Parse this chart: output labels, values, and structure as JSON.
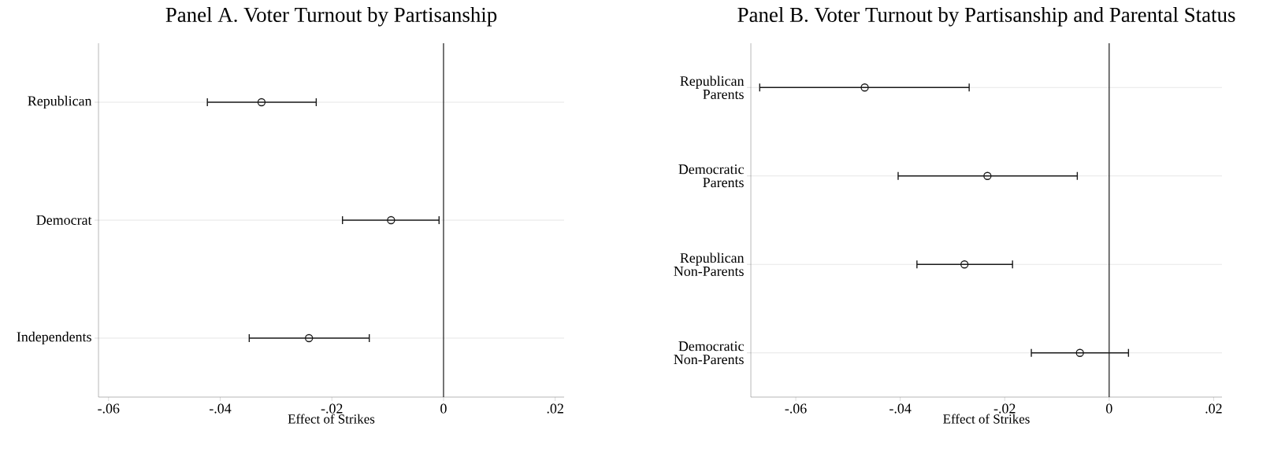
{
  "chart_data": [
    {
      "type": "scatter",
      "title": "Panel A. Voter Turnout by Partisanship",
      "xlabel": "Effect of Strikes",
      "orientation": "horizontal",
      "categories": [
        "Republican",
        "Democrat",
        "Independents"
      ],
      "values": [
        -0.0326,
        -0.0094,
        -0.0241
      ],
      "errors": [
        [
          -0.0423,
          -0.0228
        ],
        [
          -0.0181,
          -0.0008
        ],
        [
          -0.0348,
          -0.0133
        ]
      ],
      "color": "#1a1a1a",
      "marker": "circle",
      "grid": "y",
      "xlim": [
        -0.0618,
        0.0216
      ],
      "xticks": [
        {
          "value": -0.06,
          "label": "-.06"
        },
        {
          "value": -0.04,
          "label": "-.04"
        },
        {
          "value": -0.02,
          "label": "-.02"
        },
        0,
        {
          "value": 0.02,
          "label": ".02"
        }
      ],
      "ref_lines": [
        {
          "axis": "x",
          "value": 0,
          "color": "#1a1a1a"
        }
      ]
    },
    {
      "type": "scatter",
      "title": "Panel B. Voter Turnout by Partisanship and Parental Status",
      "xlabel": "Effect of Strikes",
      "orientation": "horizontal",
      "categories": [
        "Republican Parents",
        "Democratic Parents",
        "Republican Non-Parents",
        "Democratic Non-Parents"
      ],
      "values": [
        -0.0468,
        -0.0233,
        -0.0277,
        -0.0056
      ],
      "errors": [
        [
          -0.0669,
          -0.0268
        ],
        [
          -0.0404,
          -0.0061
        ],
        [
          -0.0368,
          -0.0185
        ],
        [
          -0.0149,
          0.0037
        ]
      ],
      "color": "#1a1a1a",
      "marker": "circle",
      "grid": "y",
      "xlim": [
        -0.0686,
        0.0216
      ],
      "xticks": [
        {
          "value": -0.06,
          "label": "-.06"
        },
        {
          "value": -0.04,
          "label": "-.04"
        },
        {
          "value": -0.02,
          "label": "-.02"
        },
        0,
        {
          "value": 0.02,
          "label": ".02"
        }
      ],
      "ref_lines": [
        {
          "axis": "x",
          "value": 0,
          "color": "#1a1a1a"
        }
      ]
    }
  ]
}
